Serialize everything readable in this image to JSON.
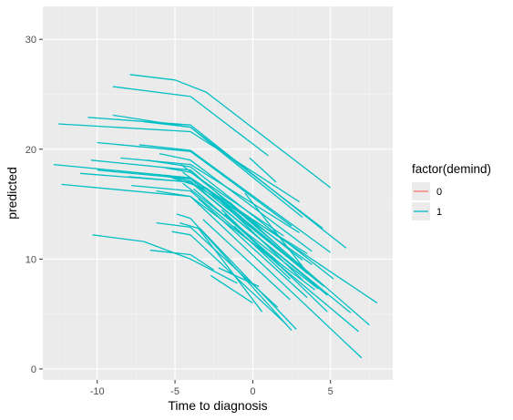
{
  "colors": {
    "panel": "#ebebeb",
    "grid_major": "#ffffff",
    "series_0": "#f8766d",
    "series_1": "#00bfc4"
  },
  "chart_data": {
    "type": "line",
    "xlabel": "Time to diagnosis",
    "ylabel": "predicted",
    "xlim": [
      -13.5,
      9
    ],
    "ylim": [
      -1,
      33
    ],
    "x_ticks": [
      -10,
      -5,
      0,
      5
    ],
    "x_tick_labels": [
      "-10",
      "-5",
      "0",
      "5"
    ],
    "y_ticks": [
      0,
      10,
      20,
      30
    ],
    "y_tick_labels": [
      "0",
      "10",
      "20",
      "30"
    ],
    "grid": true,
    "legend": {
      "title": "factor(demind)",
      "position": "right",
      "entries": [
        {
          "label": "0",
          "color": "#f8766d"
        },
        {
          "label": "1",
          "color": "#00bfc4"
        }
      ]
    },
    "series": [
      {
        "name": "1",
        "color": "#00bfc4",
        "lines": [
          [
            [
              -7.9,
              26.8
            ],
            [
              -5,
              26.3
            ],
            [
              -3,
              25.2
            ],
            [
              5,
              16.5
            ]
          ],
          [
            [
              -9,
              25.7
            ],
            [
              -4,
              24.8
            ],
            [
              1,
              19.4
            ]
          ],
          [
            [
              -12.5,
              22.3
            ],
            [
              -4,
              21.6
            ],
            [
              3,
              15.2
            ]
          ],
          [
            [
              -10.6,
              22.9
            ],
            [
              -4,
              22.2
            ],
            [
              6,
              11.0
            ]
          ],
          [
            [
              -9,
              23.1
            ],
            [
              -4,
              22.0
            ],
            [
              4.5,
              12.8
            ]
          ],
          [
            [
              -7,
              22.5
            ],
            [
              -4,
              22.0
            ],
            [
              3.2,
              13.8
            ]
          ],
          [
            [
              -10,
              20.6
            ],
            [
              -4,
              19.8
            ],
            [
              2.5,
              13.0
            ]
          ],
          [
            [
              -7.3,
              20.4
            ],
            [
              -4,
              19.9
            ],
            [
              5,
              10.6
            ]
          ],
          [
            [
              -12.8,
              18.6
            ],
            [
              -4,
              17.4
            ],
            [
              8,
              6.0
            ]
          ],
          [
            [
              -10.4,
              19.0
            ],
            [
              -4,
              18.1
            ],
            [
              7.5,
              4.0
            ]
          ],
          [
            [
              -11.1,
              17.8
            ],
            [
              -4,
              17.0
            ],
            [
              6.3,
              5.1
            ]
          ],
          [
            [
              -10,
              18.1
            ],
            [
              -4,
              17.3
            ],
            [
              4.5,
              7.6
            ]
          ],
          [
            [
              -12.3,
              16.8
            ],
            [
              -4,
              15.7
            ],
            [
              7,
              1.0
            ]
          ],
          [
            [
              -8.5,
              19.2
            ],
            [
              -4,
              18.6
            ],
            [
              3,
              12.4
            ]
          ],
          [
            [
              -6.8,
              19.0
            ],
            [
              -4,
              18.4
            ],
            [
              5.2,
              8.2
            ]
          ],
          [
            [
              -8,
              17.5
            ],
            [
              -4,
              17.0
            ],
            [
              3.5,
              10.5
            ]
          ],
          [
            [
              -5.6,
              18.3
            ],
            [
              -4,
              17.9
            ],
            [
              2,
              12.1
            ]
          ],
          [
            [
              -7.8,
              16.7
            ],
            [
              -4,
              16.2
            ],
            [
              6.8,
              3.4
            ]
          ],
          [
            [
              -5.8,
              17.6
            ],
            [
              -4,
              17.1
            ],
            [
              4.8,
              6.7
            ]
          ],
          [
            [
              -6.2,
              16.2
            ],
            [
              -4,
              15.7
            ],
            [
              4,
              7.2
            ]
          ],
          [
            [
              -4.5,
              17.9
            ],
            [
              3.8,
              9.5
            ]
          ],
          [
            [
              -4.5,
              16.9
            ],
            [
              4.2,
              7.3
            ]
          ],
          [
            [
              -5.2,
              17.4
            ],
            [
              -3,
              16.4
            ],
            [
              3.5,
              8.7
            ]
          ],
          [
            [
              -6,
              19.6
            ],
            [
              -4,
              19.0
            ],
            [
              3.8,
              10.7
            ]
          ],
          [
            [
              -4.6,
              18.6
            ],
            [
              3.2,
              9.9
            ]
          ],
          [
            [
              -3.8,
              16.4
            ],
            [
              2,
              9.3
            ]
          ],
          [
            [
              -3,
              16.5
            ],
            [
              4.6,
              7.5
            ]
          ],
          [
            [
              -3.5,
              15.5
            ],
            [
              3.5,
              6.5
            ]
          ],
          [
            [
              -2.5,
              15.9
            ],
            [
              3.2,
              8.1
            ]
          ],
          [
            [
              -2,
              14.5
            ],
            [
              4.8,
              5.2
            ]
          ],
          [
            [
              -3.2,
              13.6
            ],
            [
              2.4,
              6.3
            ]
          ],
          [
            [
              -1.5,
              15.2
            ],
            [
              1.8,
              11.0
            ]
          ],
          [
            [
              -0.5,
              16.0
            ],
            [
              3.6,
              8.6
            ]
          ],
          [
            [
              -0.2,
              19.2
            ],
            [
              1.5,
              17.0
            ]
          ],
          [
            [
              -1.8,
              14.1
            ],
            [
              1.7,
              9.4
            ]
          ],
          [
            [
              -4.9,
              14.1
            ],
            [
              -4,
              13.7
            ],
            [
              2.5,
              3.5
            ]
          ],
          [
            [
              -6.2,
              13.3
            ],
            [
              -4,
              12.9
            ],
            [
              1.6,
              5.6
            ]
          ],
          [
            [
              -5.2,
              12.5
            ],
            [
              -4,
              12.2
            ],
            [
              2.2,
              4.0
            ]
          ],
          [
            [
              -4.7,
              13.3
            ],
            [
              -3.5,
              12.8
            ],
            [
              0.6,
              5.2
            ]
          ],
          [
            [
              -10.3,
              12.2
            ],
            [
              -7,
              11.6
            ],
            [
              -4,
              10.0
            ],
            [
              -1,
              7.8
            ]
          ],
          [
            [
              -6.6,
              10.8
            ],
            [
              -4,
              10.4
            ],
            [
              -2.5,
              9.0
            ]
          ],
          [
            [
              -2.2,
              9.2
            ],
            [
              0.4,
              7.5
            ]
          ],
          [
            [
              -2.7,
              8.5
            ],
            [
              0,
              6.0
            ]
          ],
          [
            [
              -3.4,
              12.8
            ],
            [
              2.8,
              3.6
            ]
          ],
          [
            [
              -1.2,
              13.0
            ],
            [
              2.4,
              8.2
            ]
          ]
        ]
      }
    ]
  }
}
